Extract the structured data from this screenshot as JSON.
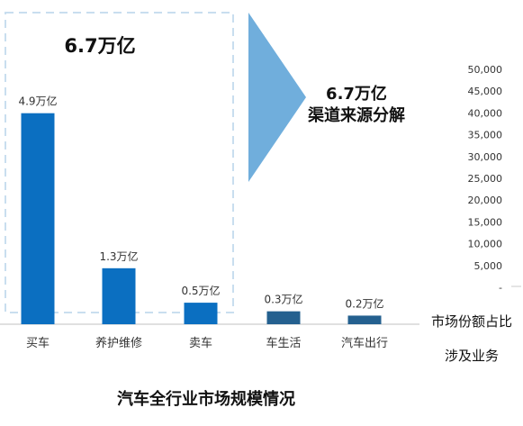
{
  "chart_data": {
    "type": "bar",
    "title": "汽车全行业市场规模情况",
    "categories": [
      "买车",
      "养护维修",
      "卖车",
      "车生活",
      "汽车出行"
    ],
    "values": [
      4.9,
      1.3,
      0.5,
      0.3,
      0.2
    ],
    "value_labels": [
      "4.9万亿",
      "1.3万亿",
      "0.5万亿",
      "0.3万亿",
      "0.2万亿"
    ],
    "unit": "万亿",
    "ylim": [
      0,
      5.5
    ],
    "grid": false,
    "bar_colors": [
      "#0B6FC1",
      "#0B6FC1",
      "#0B6FC1",
      "#24608F",
      "#24608F"
    ],
    "highlight": {
      "total_label": "6.7万亿",
      "covers_categories": [
        "买车",
        "养护维修",
        "卖车"
      ]
    },
    "arrow": {
      "line1": "6.7万亿",
      "line2": "渠道来源分解",
      "color": "#70AEDC"
    },
    "secondary_axis": {
      "ticks": [
        "50,000",
        "45,000",
        "40,000",
        "35,000",
        "30,000",
        "25,000",
        "20,000",
        "15,000",
        "10,000",
        "5,000",
        "-"
      ],
      "label1": "市场份额占比",
      "label2": "涉及业务"
    }
  }
}
